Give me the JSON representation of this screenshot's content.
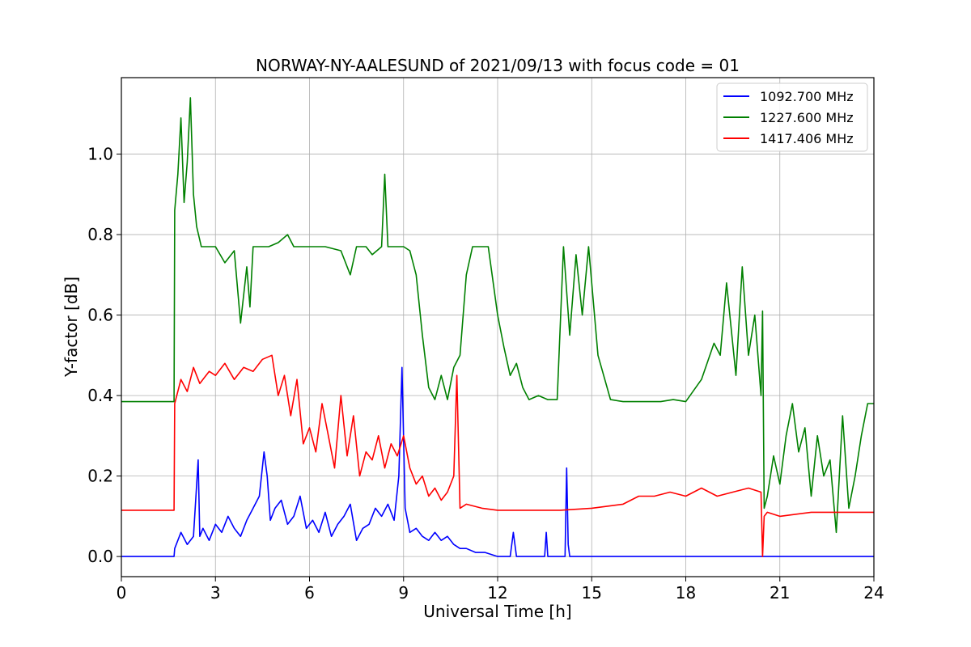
{
  "chart_data": {
    "type": "line",
    "title": "NORWAY-NY-AALESUND of 2021/09/13 with focus code = 01",
    "xlabel": "Universal Time [h]",
    "ylabel": "Y-factor [dB]",
    "xlim": [
      0,
      24
    ],
    "ylim": [
      -0.05,
      1.19
    ],
    "xticks": [
      0,
      3,
      6,
      9,
      12,
      15,
      18,
      21,
      24
    ],
    "yticks": [
      0.0,
      0.2,
      0.4,
      0.6,
      0.8,
      1.0
    ],
    "xtick_labels": [
      "0",
      "3",
      "6",
      "9",
      "12",
      "15",
      "18",
      "21",
      "24"
    ],
    "ytick_labels": [
      "0.0",
      "0.2",
      "0.4",
      "0.6",
      "0.8",
      "1.0"
    ],
    "grid": true,
    "legend_position": "top-right",
    "series": [
      {
        "name": "1092.700 MHz",
        "color": "#0000ff",
        "x": [
          0,
          1.68,
          1.7,
          1.9,
          2.1,
          2.3,
          2.45,
          2.5,
          2.6,
          2.8,
          3.0,
          3.2,
          3.4,
          3.6,
          3.8,
          4.0,
          4.2,
          4.4,
          4.55,
          4.65,
          4.75,
          4.9,
          5.1,
          5.3,
          5.5,
          5.7,
          5.9,
          6.1,
          6.3,
          6.5,
          6.7,
          6.9,
          7.1,
          7.3,
          7.5,
          7.7,
          7.9,
          8.1,
          8.3,
          8.5,
          8.7,
          8.85,
          8.95,
          9.05,
          9.2,
          9.4,
          9.6,
          9.8,
          10.0,
          10.2,
          10.4,
          10.6,
          10.8,
          11.0,
          11.3,
          11.6,
          12.0,
          12.4,
          12.5,
          12.6,
          13.5,
          13.55,
          13.6,
          14.15,
          14.2,
          14.25,
          14.3,
          16,
          18,
          20,
          22,
          24
        ],
        "values": [
          0,
          0,
          0.02,
          0.06,
          0.03,
          0.05,
          0.24,
          0.05,
          0.07,
          0.04,
          0.08,
          0.06,
          0.1,
          0.07,
          0.05,
          0.09,
          0.12,
          0.15,
          0.26,
          0.2,
          0.09,
          0.12,
          0.14,
          0.08,
          0.1,
          0.15,
          0.07,
          0.09,
          0.06,
          0.11,
          0.05,
          0.08,
          0.1,
          0.13,
          0.04,
          0.07,
          0.08,
          0.12,
          0.1,
          0.13,
          0.09,
          0.2,
          0.47,
          0.12,
          0.06,
          0.07,
          0.05,
          0.04,
          0.06,
          0.04,
          0.05,
          0.03,
          0.02,
          0.02,
          0.01,
          0.01,
          0.0,
          0.0,
          0.06,
          0.0,
          0.0,
          0.06,
          0.0,
          0.0,
          0.22,
          0.03,
          0.0,
          0,
          0,
          0,
          0,
          0
        ]
      },
      {
        "name": "1227.600 MHz",
        "color": "#008000",
        "x": [
          0,
          1.68,
          1.7,
          1.8,
          1.9,
          2.0,
          2.1,
          2.2,
          2.3,
          2.4,
          2.55,
          2.7,
          3.0,
          3.3,
          3.6,
          3.8,
          4.0,
          4.1,
          4.2,
          4.4,
          4.7,
          5.0,
          5.3,
          5.5,
          6.0,
          6.5,
          7.0,
          7.3,
          7.5,
          7.8,
          8.0,
          8.3,
          8.4,
          8.5,
          8.7,
          9.0,
          9.2,
          9.4,
          9.6,
          9.8,
          10.0,
          10.2,
          10.4,
          10.6,
          10.8,
          11.0,
          11.2,
          11.4,
          11.7,
          12.0,
          12.2,
          12.4,
          12.6,
          12.8,
          13.0,
          13.3,
          13.6,
          13.9,
          14.1,
          14.3,
          14.5,
          14.7,
          14.9,
          15.2,
          15.6,
          16.0,
          16.5,
          17.0,
          17.2,
          17.6,
          18.0,
          18.5,
          18.9,
          19.1,
          19.3,
          19.6,
          19.8,
          20.0,
          20.2,
          20.4,
          20.45,
          20.5,
          20.6,
          20.8,
          21.0,
          21.2,
          21.4,
          21.6,
          21.8,
          22.0,
          22.2,
          22.4,
          22.6,
          22.8,
          23.0,
          23.2,
          23.4,
          23.6,
          23.8,
          24
        ],
        "values": [
          0.385,
          0.385,
          0.86,
          0.95,
          1.09,
          0.88,
          0.98,
          1.14,
          0.9,
          0.82,
          0.77,
          0.77,
          0.77,
          0.73,
          0.76,
          0.58,
          0.72,
          0.62,
          0.77,
          0.77,
          0.77,
          0.78,
          0.8,
          0.77,
          0.77,
          0.77,
          0.76,
          0.7,
          0.77,
          0.77,
          0.75,
          0.77,
          0.95,
          0.77,
          0.77,
          0.77,
          0.76,
          0.7,
          0.55,
          0.42,
          0.39,
          0.45,
          0.39,
          0.47,
          0.5,
          0.7,
          0.77,
          0.77,
          0.77,
          0.6,
          0.52,
          0.45,
          0.48,
          0.42,
          0.39,
          0.4,
          0.39,
          0.39,
          0.77,
          0.55,
          0.75,
          0.6,
          0.77,
          0.5,
          0.39,
          0.385,
          0.385,
          0.385,
          0.385,
          0.39,
          0.385,
          0.44,
          0.53,
          0.5,
          0.68,
          0.45,
          0.72,
          0.5,
          0.6,
          0.4,
          0.61,
          0.12,
          0.15,
          0.25,
          0.18,
          0.3,
          0.38,
          0.26,
          0.32,
          0.15,
          0.3,
          0.2,
          0.24,
          0.06,
          0.35,
          0.12,
          0.2,
          0.3,
          0.38,
          0.38
        ]
      },
      {
        "name": "1417.406 MHz",
        "color": "#ff0000",
        "x": [
          0,
          1.68,
          1.7,
          1.9,
          2.1,
          2.3,
          2.5,
          2.8,
          3.0,
          3.3,
          3.6,
          3.9,
          4.2,
          4.5,
          4.8,
          5.0,
          5.2,
          5.4,
          5.6,
          5.8,
          6.0,
          6.2,
          6.4,
          6.6,
          6.8,
          7.0,
          7.2,
          7.4,
          7.6,
          7.8,
          8.0,
          8.2,
          8.4,
          8.6,
          8.8,
          9.0,
          9.2,
          9.4,
          9.6,
          9.8,
          10.0,
          10.2,
          10.4,
          10.6,
          10.7,
          10.8,
          11.0,
          11.5,
          12.0,
          12.5,
          13.0,
          14.0,
          15.0,
          15.5,
          16.0,
          16.5,
          17.0,
          17.5,
          18.0,
          18.5,
          19.0,
          19.5,
          20.0,
          20.4,
          20.45,
          20.5,
          20.6,
          21.0,
          22.0,
          23.0,
          24
        ],
        "values": [
          0.115,
          0.115,
          0.38,
          0.44,
          0.41,
          0.47,
          0.43,
          0.46,
          0.45,
          0.48,
          0.44,
          0.47,
          0.46,
          0.49,
          0.5,
          0.4,
          0.45,
          0.35,
          0.44,
          0.28,
          0.32,
          0.26,
          0.38,
          0.3,
          0.22,
          0.4,
          0.25,
          0.35,
          0.2,
          0.26,
          0.24,
          0.3,
          0.22,
          0.28,
          0.25,
          0.3,
          0.22,
          0.18,
          0.2,
          0.15,
          0.17,
          0.14,
          0.16,
          0.2,
          0.45,
          0.12,
          0.13,
          0.12,
          0.115,
          0.115,
          0.115,
          0.115,
          0.12,
          0.125,
          0.13,
          0.15,
          0.15,
          0.16,
          0.15,
          0.17,
          0.15,
          0.16,
          0.17,
          0.16,
          0.0,
          0.1,
          0.11,
          0.1,
          0.11,
          0.11,
          0.11
        ]
      }
    ]
  }
}
